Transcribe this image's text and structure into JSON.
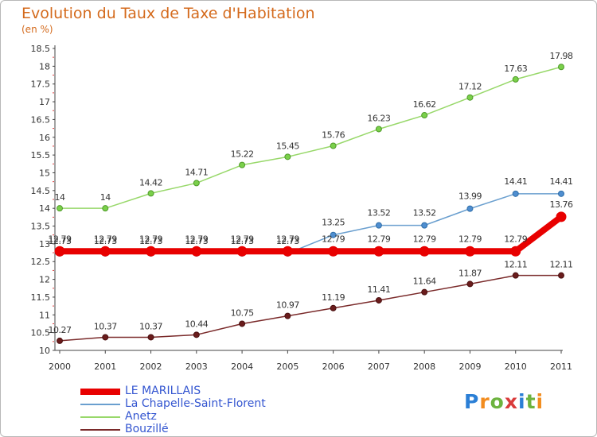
{
  "chart_data": {
    "type": "line",
    "title": "Evolution du Taux de Taxe d'Habitation",
    "subtitle": "(en %)",
    "x": [
      "2000",
      "2001",
      "2002",
      "2003",
      "2004",
      "2005",
      "2006",
      "2007",
      "2008",
      "2009",
      "2010",
      "2011"
    ],
    "ylim": [
      10,
      18.5
    ],
    "yticks": [
      "10",
      "10.5",
      "11",
      "11.5",
      "12",
      "12.5",
      "13",
      "13.5",
      "14",
      "14.5",
      "15",
      "15.5",
      "16",
      "16.5",
      "17",
      "17.5",
      "18",
      "18.5"
    ],
    "grid": false,
    "legend_position": "bottom-left",
    "series": [
      {
        "name": "LE MARILLAIS",
        "color": "#e80000",
        "values": [
          12.79,
          12.79,
          12.79,
          12.79,
          12.79,
          12.79,
          12.79,
          12.79,
          12.79,
          12.79,
          12.79,
          13.76
        ]
      },
      {
        "name": "La Chapelle-Saint-Florent",
        "color": "#6a9fcf",
        "values": [
          12.73,
          12.73,
          12.73,
          12.73,
          12.73,
          12.73,
          13.25,
          13.52,
          13.52,
          13.99,
          14.41,
          14.41
        ]
      },
      {
        "name": "Anetz",
        "color": "#98d86a",
        "values": [
          14,
          14,
          14.42,
          14.71,
          15.22,
          15.45,
          15.76,
          16.23,
          16.62,
          17.12,
          17.63,
          17.98
        ]
      },
      {
        "name": "Bouzillé",
        "color": "#7a2a2a",
        "values": [
          10.27,
          10.37,
          10.37,
          10.44,
          10.75,
          10.97,
          11.19,
          11.41,
          11.64,
          11.87,
          12.11,
          12.11
        ]
      }
    ]
  },
  "logo": {
    "text": "Proxiti",
    "letters": [
      "P",
      "r",
      "o",
      "x",
      "i",
      "t",
      "i"
    ],
    "colors": [
      "#2b7fd6",
      "#f28c1e",
      "#6db33f",
      "#d93b3b",
      "#2b7fd6",
      "#6db33f",
      "#f28c1e"
    ]
  }
}
